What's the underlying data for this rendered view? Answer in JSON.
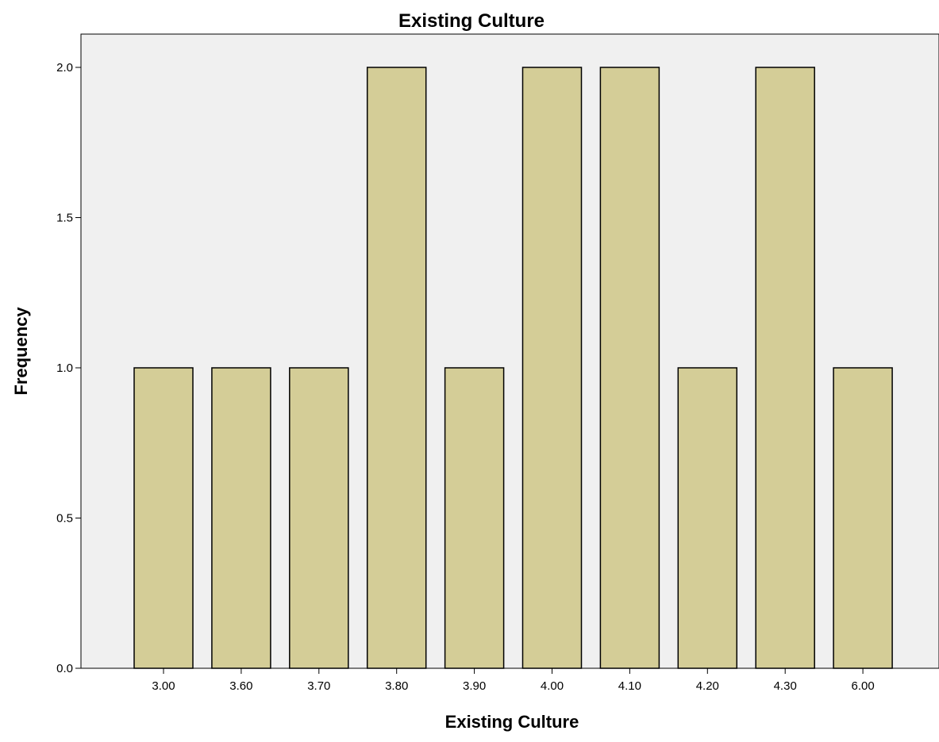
{
  "chart_data": {
    "type": "bar",
    "title": "Existing Culture",
    "xlabel": "Existing Culture",
    "ylabel": "Frequency",
    "categories": [
      "3.00",
      "3.60",
      "3.70",
      "3.80",
      "3.90",
      "4.00",
      "4.10",
      "4.20",
      "4.30",
      "6.00"
    ],
    "values": [
      1,
      1,
      1,
      2,
      1,
      2,
      2,
      1,
      2,
      1
    ],
    "ylim": [
      0,
      2
    ],
    "yticks": [
      "0.0",
      "0.5",
      "1.0",
      "1.5",
      "2.0"
    ],
    "grid": false,
    "legend": "none",
    "colors": {
      "bar_fill": "#d4cd97",
      "bar_stroke": "#000000",
      "plot_background": "#f0f0f0"
    }
  }
}
